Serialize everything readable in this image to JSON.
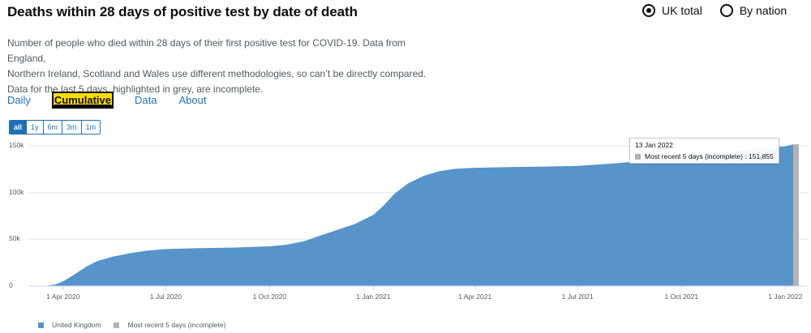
{
  "title": "Deaths within 28 days of positive test by date of death",
  "view_options": [
    {
      "label": "UK total",
      "checked": true
    },
    {
      "label": "By nation",
      "checked": false
    }
  ],
  "description": [
    "Number of people who died within 28 days of their first positive test for COVID-19. Data from England,",
    "Northern Ireland, Scotland and Wales use different methodologies, so can’t be directly compared.",
    "Data for the last 5 days, highlighted in grey, are incomplete."
  ],
  "tabs": [
    {
      "label": "Daily",
      "active": false
    },
    {
      "label": "Cumulative",
      "active": true
    },
    {
      "label": "Data",
      "active": false
    },
    {
      "label": "About",
      "active": false
    }
  ],
  "ranges": [
    {
      "label": "all",
      "active": true
    },
    {
      "label": "1y",
      "active": false
    },
    {
      "label": "6m",
      "active": false
    },
    {
      "label": "3m",
      "active": false
    },
    {
      "label": "1m",
      "active": false
    }
  ],
  "tooltip": {
    "date": "13 Jan 2022",
    "label": "Most recent 5 days (incomplete) : 151,855"
  },
  "colors": {
    "main": "#5694ca",
    "incomplete": "#b1b4b6"
  },
  "chart_data": {
    "type": "area",
    "ylim": [
      0,
      150000
    ],
    "yticks": [
      {
        "label": "0",
        "value": 0
      },
      {
        "label": "50k",
        "value": 50000
      },
      {
        "label": "100k",
        "value": 100000
      },
      {
        "label": "150k",
        "value": 150000
      }
    ],
    "xticks": [
      "1 Apr 2020",
      "1 Jul 2020",
      "1 Oct 2020",
      "1 Jan 2021",
      "1 Apr 2021",
      "1 Jul 2021",
      "1 Oct 2021",
      "1 Jan 2022"
    ],
    "xtick_dates": [
      "2020-04-01",
      "2020-07-01",
      "2020-10-01",
      "2021-01-01",
      "2021-04-01",
      "2021-07-01",
      "2021-10-01",
      "2022-01-01"
    ],
    "x_range": [
      "2020-03-02",
      "2022-01-13"
    ],
    "series": [
      {
        "name": "United Kingdom",
        "points": [
          [
            "2020-03-02",
            0
          ],
          [
            "2020-03-15",
            100
          ],
          [
            "2020-03-25",
            1500
          ],
          [
            "2020-04-01",
            5000
          ],
          [
            "2020-04-08",
            10000
          ],
          [
            "2020-04-15",
            15500
          ],
          [
            "2020-04-22",
            21000
          ],
          [
            "2020-05-01",
            26500
          ],
          [
            "2020-05-15",
            31500
          ],
          [
            "2020-06-01",
            35500
          ],
          [
            "2020-06-15",
            38000
          ],
          [
            "2020-07-01",
            39500
          ],
          [
            "2020-08-01",
            40500
          ],
          [
            "2020-09-01",
            41200
          ],
          [
            "2020-10-01",
            42500
          ],
          [
            "2020-10-15",
            44000
          ],
          [
            "2020-11-01",
            48000
          ],
          [
            "2020-11-15",
            54000
          ],
          [
            "2020-12-01",
            60500
          ],
          [
            "2020-12-15",
            66000
          ],
          [
            "2021-01-01",
            76000
          ],
          [
            "2021-01-10",
            86000
          ],
          [
            "2021-01-20",
            99000
          ],
          [
            "2021-02-01",
            110000
          ],
          [
            "2021-02-15",
            118000
          ],
          [
            "2021-03-01",
            123000
          ],
          [
            "2021-03-15",
            125500
          ],
          [
            "2021-04-01",
            126500
          ],
          [
            "2021-05-01",
            127300
          ],
          [
            "2021-06-01",
            127800
          ],
          [
            "2021-07-01",
            128600
          ],
          [
            "2021-08-01",
            131000
          ],
          [
            "2021-09-01",
            134500
          ],
          [
            "2021-10-01",
            138500
          ],
          [
            "2021-11-01",
            142500
          ],
          [
            "2021-12-01",
            146500
          ],
          [
            "2022-01-01",
            149500
          ],
          [
            "2022-01-08",
            151500
          ]
        ]
      },
      {
        "name": "Most recent 5 days (incomplete)",
        "points": [
          [
            "2022-01-08",
            151500
          ],
          [
            "2022-01-13",
            151855
          ]
        ]
      }
    ]
  },
  "legend": [
    {
      "label": "United Kingdom",
      "color": "#5694ca"
    },
    {
      "label": "Most recent 5 days (incomplete)",
      "color": "#b1b4b6"
    }
  ]
}
